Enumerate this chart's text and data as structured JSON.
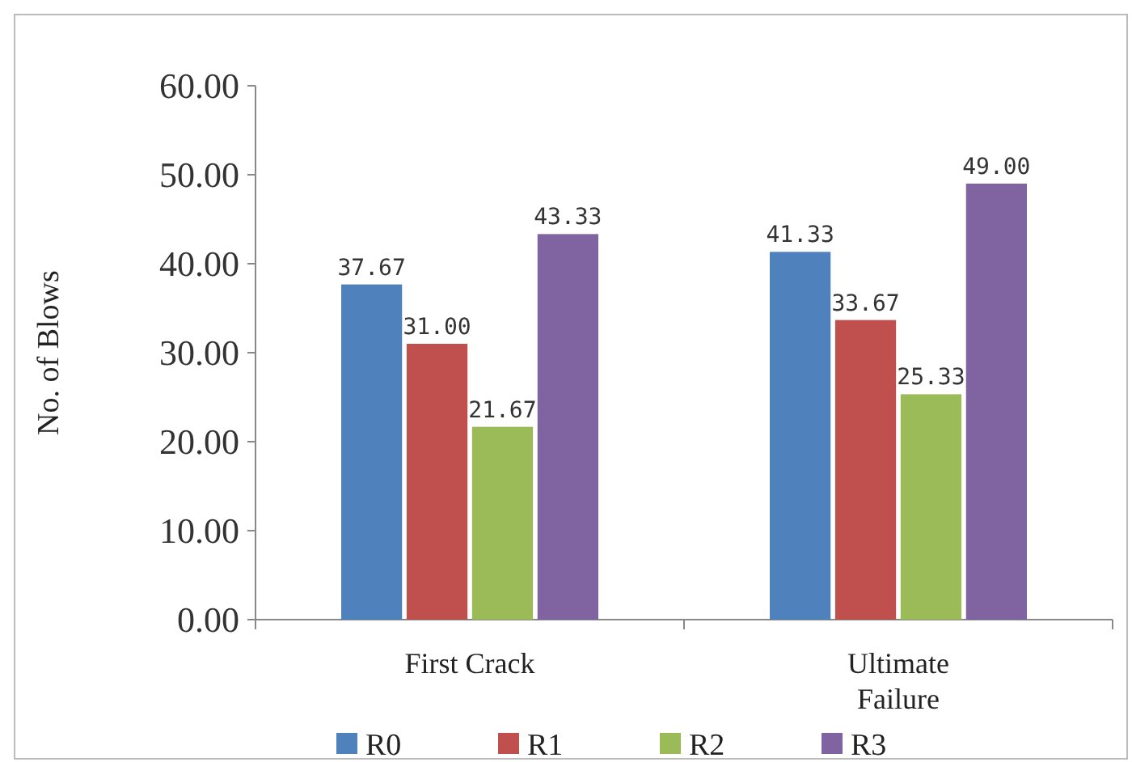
{
  "chart_data": {
    "type": "bar",
    "ylabel": "No. of Blows",
    "categories": [
      "First Crack",
      "Ultimate Failure"
    ],
    "series": [
      {
        "name": "R0",
        "color": "#4f81bd",
        "values": [
          37.67,
          41.33
        ],
        "value_labels": [
          "37.67",
          "41.33"
        ]
      },
      {
        "name": "R1",
        "color": "#c0504d",
        "values": [
          31.0,
          33.67
        ],
        "value_labels": [
          "31.00",
          "33.67"
        ]
      },
      {
        "name": "R2",
        "color": "#9bbb59",
        "values": [
          21.67,
          25.33
        ],
        "value_labels": [
          "21.67",
          "25.33"
        ]
      },
      {
        "name": "R3",
        "color": "#8064a2",
        "values": [
          43.33,
          49.0
        ],
        "value_labels": [
          "43.33",
          "49.00"
        ]
      }
    ],
    "ylim": [
      0,
      60
    ],
    "yticks": [
      {
        "value": 0,
        "label": "0.00"
      },
      {
        "value": 10,
        "label": "10.00"
      },
      {
        "value": 20,
        "label": "20.00"
      },
      {
        "value": 30,
        "label": "30.00"
      },
      {
        "value": 40,
        "label": "40.00"
      },
      {
        "value": 50,
        "label": "50.00"
      },
      {
        "value": 60,
        "label": "60.00"
      }
    ],
    "legend": "bottom"
  }
}
